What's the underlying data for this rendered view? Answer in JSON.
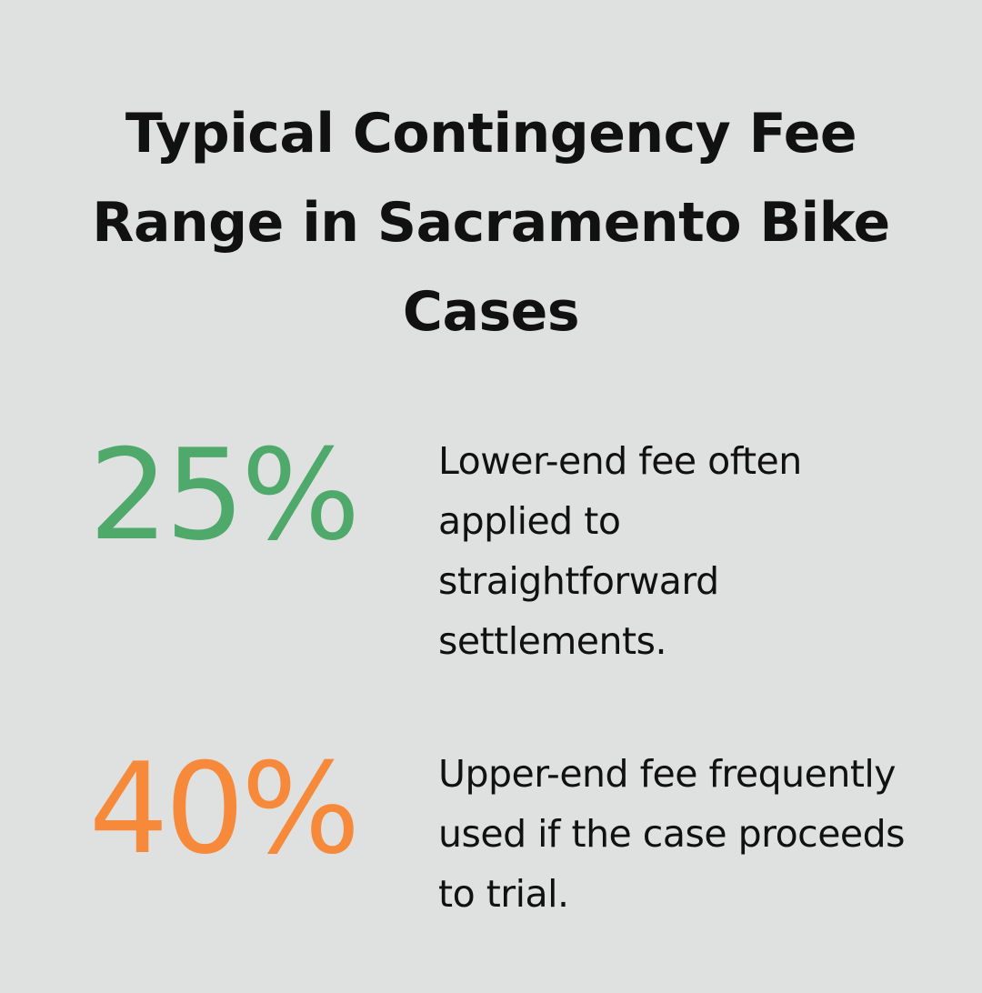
{
  "title": "Typical Contingency Fee Range in Sacramento Bike Cases",
  "stats": [
    {
      "value": "25%",
      "color": "#4fa96b",
      "description": "Lower-end fee often applied to straightforward settlements."
    },
    {
      "value": "40%",
      "color": "#f6893a",
      "description": "Upper-end fee frequently used if the case proceeds to trial."
    }
  ]
}
